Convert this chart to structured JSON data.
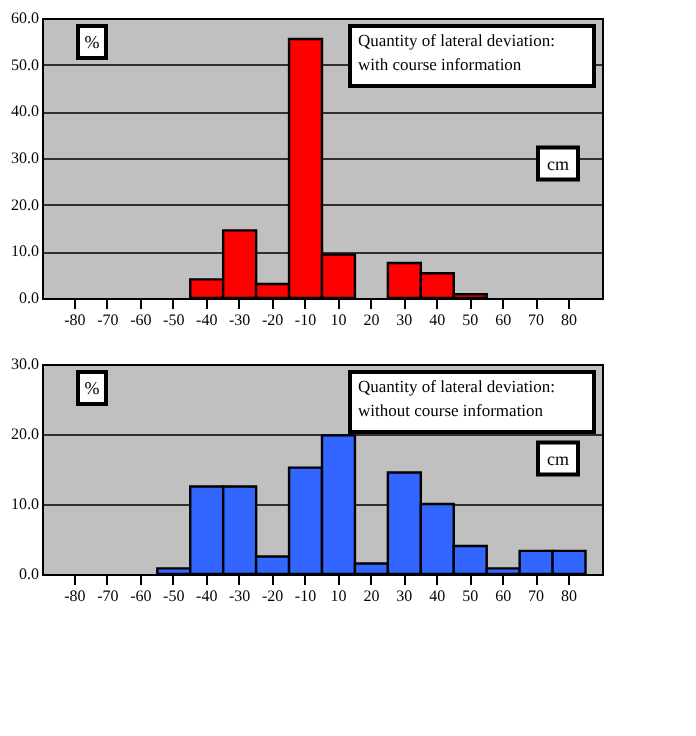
{
  "chart_data": [
    {
      "type": "bar",
      "categories": [
        "-80",
        "-70",
        "-60",
        "-50",
        "-40",
        "-30",
        "-20",
        "-10",
        "10",
        "20",
        "30",
        "40",
        "50",
        "60",
        "70",
        "80"
      ],
      "series": [
        {
          "color": "#ff0000",
          "values": [
            0,
            0,
            0,
            0,
            4,
            14.5,
            3,
            55.5,
            9.3,
            0,
            7.5,
            5.3,
            0.8,
            0,
            0,
            0
          ]
        }
      ],
      "ylim": [
        0,
        60
      ],
      "yticks": [
        {
          "value": 0,
          "label": "0.0"
        },
        {
          "value": 10,
          "label": "10.0"
        },
        {
          "value": 20,
          "label": "20.0"
        },
        {
          "value": 30,
          "label": "30.0"
        },
        {
          "value": 40,
          "label": "40.0"
        },
        {
          "value": 50,
          "label": "50.0"
        },
        {
          "value": 60,
          "label": "60.0"
        }
      ],
      "grid": "y",
      "annotations": [
        "%",
        "cm",
        "Quantity of lateral deviation: with course information"
      ]
    },
    {
      "type": "bar",
      "categories": [
        "-80",
        "-70",
        "-60",
        "-50",
        "-40",
        "-30",
        "-20",
        "-10",
        "10",
        "20",
        "30",
        "40",
        "50",
        "60",
        "70",
        "80"
      ],
      "series": [
        {
          "color": "#3366ff",
          "values": [
            0,
            0,
            0,
            0.8,
            12.5,
            12.5,
            2.5,
            15.2,
            19.8,
            1.5,
            14.5,
            10,
            4,
            0.8,
            3.3,
            3.3
          ]
        }
      ],
      "ylim": [
        0,
        30
      ],
      "yticks": [
        {
          "value": 0,
          "label": "0.0"
        },
        {
          "value": 10,
          "label": "10.0"
        },
        {
          "value": 20,
          "label": "20.0"
        },
        {
          "value": 30,
          "label": "30.0"
        }
      ],
      "grid": "y",
      "annotations": [
        "%",
        "cm",
        "Quantity of lateral deviation: without course information"
      ]
    }
  ]
}
